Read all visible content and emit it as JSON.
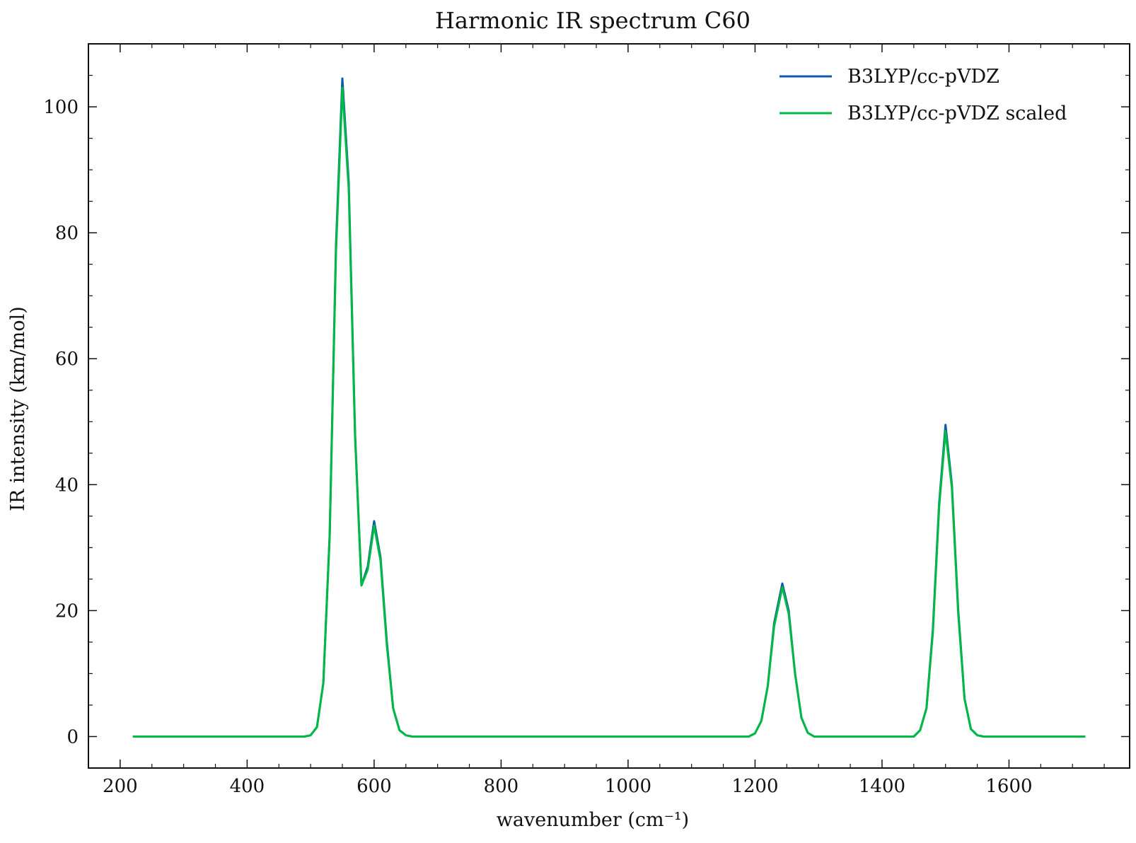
{
  "chart_data": {
    "type": "line",
    "title": "Harmonic IR spectrum C60",
    "xlabel": "wavenumber (cm⁻¹)",
    "ylabel": "IR intensity (km/mol)",
    "xlim": [
      150,
      1790
    ],
    "ylim": [
      -5,
      110
    ],
    "xticks": [
      200,
      400,
      600,
      800,
      1000,
      1200,
      1400,
      1600
    ],
    "xtick_labels": [
      "200",
      "400",
      "600",
      "800",
      "1000",
      "1200",
      "1400",
      "1600"
    ],
    "yticks": [
      0,
      20,
      40,
      60,
      80,
      100
    ],
    "ytick_labels": [
      "0",
      "20",
      "40",
      "60",
      "80",
      "100"
    ],
    "grid": false,
    "legend_position": "top-right",
    "series": [
      {
        "name": "B3LYP/cc-pVDZ",
        "color": "#0C5DA5",
        "points": [
          [
            220,
            0
          ],
          [
            490,
            0
          ],
          [
            500,
            0.2
          ],
          [
            510,
            1.5
          ],
          [
            520,
            8.5
          ],
          [
            530,
            32
          ],
          [
            540,
            78
          ],
          [
            550,
            104.5
          ],
          [
            560,
            88
          ],
          [
            570,
            48
          ],
          [
            580,
            24
          ],
          [
            590,
            27
          ],
          [
            600,
            34.2
          ],
          [
            610,
            28.5
          ],
          [
            620,
            15
          ],
          [
            630,
            4.5
          ],
          [
            640,
            1
          ],
          [
            650,
            0.2
          ],
          [
            660,
            0
          ],
          [
            1190,
            0
          ],
          [
            1200,
            0.5
          ],
          [
            1210,
            2.5
          ],
          [
            1220,
            8
          ],
          [
            1230,
            18
          ],
          [
            1243,
            24.3
          ],
          [
            1253,
            20
          ],
          [
            1263,
            10
          ],
          [
            1273,
            3
          ],
          [
            1283,
            0.6
          ],
          [
            1293,
            0
          ],
          [
            1450,
            0
          ],
          [
            1460,
            1
          ],
          [
            1470,
            4.5
          ],
          [
            1480,
            17
          ],
          [
            1490,
            37
          ],
          [
            1500,
            49.5
          ],
          [
            1510,
            40
          ],
          [
            1520,
            20
          ],
          [
            1530,
            6
          ],
          [
            1540,
            1.2
          ],
          [
            1550,
            0.2
          ],
          [
            1560,
            0
          ],
          [
            1720,
            0
          ]
        ]
      },
      {
        "name": "B3LYP/cc-pVDZ scaled",
        "color": "#00B945",
        "points": [
          [
            220,
            0
          ],
          [
            490,
            0
          ],
          [
            500,
            0.2
          ],
          [
            510,
            1.5
          ],
          [
            520,
            8.5
          ],
          [
            530,
            32
          ],
          [
            540,
            77
          ],
          [
            550,
            103
          ],
          [
            560,
            87
          ],
          [
            570,
            47.5
          ],
          [
            580,
            24
          ],
          [
            590,
            26.5
          ],
          [
            600,
            33.5
          ],
          [
            610,
            28
          ],
          [
            620,
            14.5
          ],
          [
            630,
            4.5
          ],
          [
            640,
            1
          ],
          [
            650,
            0.2
          ],
          [
            660,
            0
          ],
          [
            1190,
            0
          ],
          [
            1200,
            0.5
          ],
          [
            1210,
            2.5
          ],
          [
            1220,
            8
          ],
          [
            1230,
            17.5
          ],
          [
            1243,
            23.7
          ],
          [
            1253,
            19.5
          ],
          [
            1263,
            10
          ],
          [
            1273,
            3
          ],
          [
            1283,
            0.6
          ],
          [
            1293,
            0
          ],
          [
            1450,
            0
          ],
          [
            1460,
            1
          ],
          [
            1470,
            4.5
          ],
          [
            1480,
            16.5
          ],
          [
            1490,
            36.5
          ],
          [
            1500,
            48.5
          ],
          [
            1510,
            39.5
          ],
          [
            1520,
            19.5
          ],
          [
            1530,
            6
          ],
          [
            1540,
            1.2
          ],
          [
            1550,
            0.2
          ],
          [
            1560,
            0
          ],
          [
            1720,
            0
          ]
        ]
      }
    ]
  }
}
